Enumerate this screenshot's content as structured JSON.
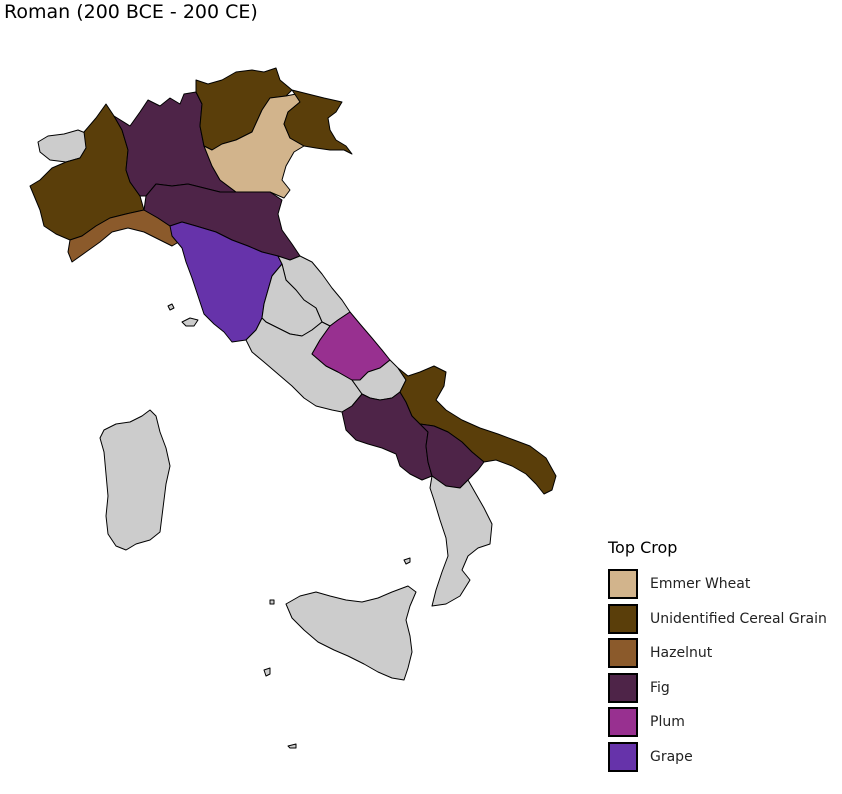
{
  "title": "Roman (200 BCE - 200 CE)",
  "legend": {
    "title": "Top Crop",
    "items": [
      {
        "label": "Emmer Wheat",
        "color": "#d2b48c"
      },
      {
        "label": "Unidentified Cereal Grain",
        "color": "#5a3e0a"
      },
      {
        "label": "Hazelnut",
        "color": "#8b5a2b"
      },
      {
        "label": "Fig",
        "color": "#4e2448"
      },
      {
        "label": "Plum",
        "color": "#983090"
      },
      {
        "label": "Grape",
        "color": "#6633aa"
      }
    ]
  },
  "no_data_color": "#cccccc",
  "regions": [
    {
      "name": "Aosta Valley",
      "crop": null
    },
    {
      "name": "Piedmont",
      "crop": "Unidentified Cereal Grain"
    },
    {
      "name": "Liguria",
      "crop": "Hazelnut"
    },
    {
      "name": "Lombardy",
      "crop": "Fig"
    },
    {
      "name": "Trentino-Alto Adige",
      "crop": "Unidentified Cereal Grain"
    },
    {
      "name": "Veneto",
      "crop": "Emmer Wheat"
    },
    {
      "name": "Friuli-Venezia Giulia",
      "crop": "Unidentified Cereal Grain"
    },
    {
      "name": "Emilia-Romagna",
      "crop": "Fig"
    },
    {
      "name": "Tuscany",
      "crop": "Grape"
    },
    {
      "name": "Marche",
      "crop": null
    },
    {
      "name": "Umbria",
      "crop": null
    },
    {
      "name": "Lazio",
      "crop": null
    },
    {
      "name": "Abruzzo",
      "crop": "Plum"
    },
    {
      "name": "Molise",
      "crop": null
    },
    {
      "name": "Campania",
      "crop": "Fig"
    },
    {
      "name": "Apulia",
      "crop": "Unidentified Cereal Grain"
    },
    {
      "name": "Basilicata",
      "crop": "Fig"
    },
    {
      "name": "Calabria",
      "crop": null
    },
    {
      "name": "Sicily",
      "crop": null
    },
    {
      "name": "Sardinia",
      "crop": null
    }
  ]
}
